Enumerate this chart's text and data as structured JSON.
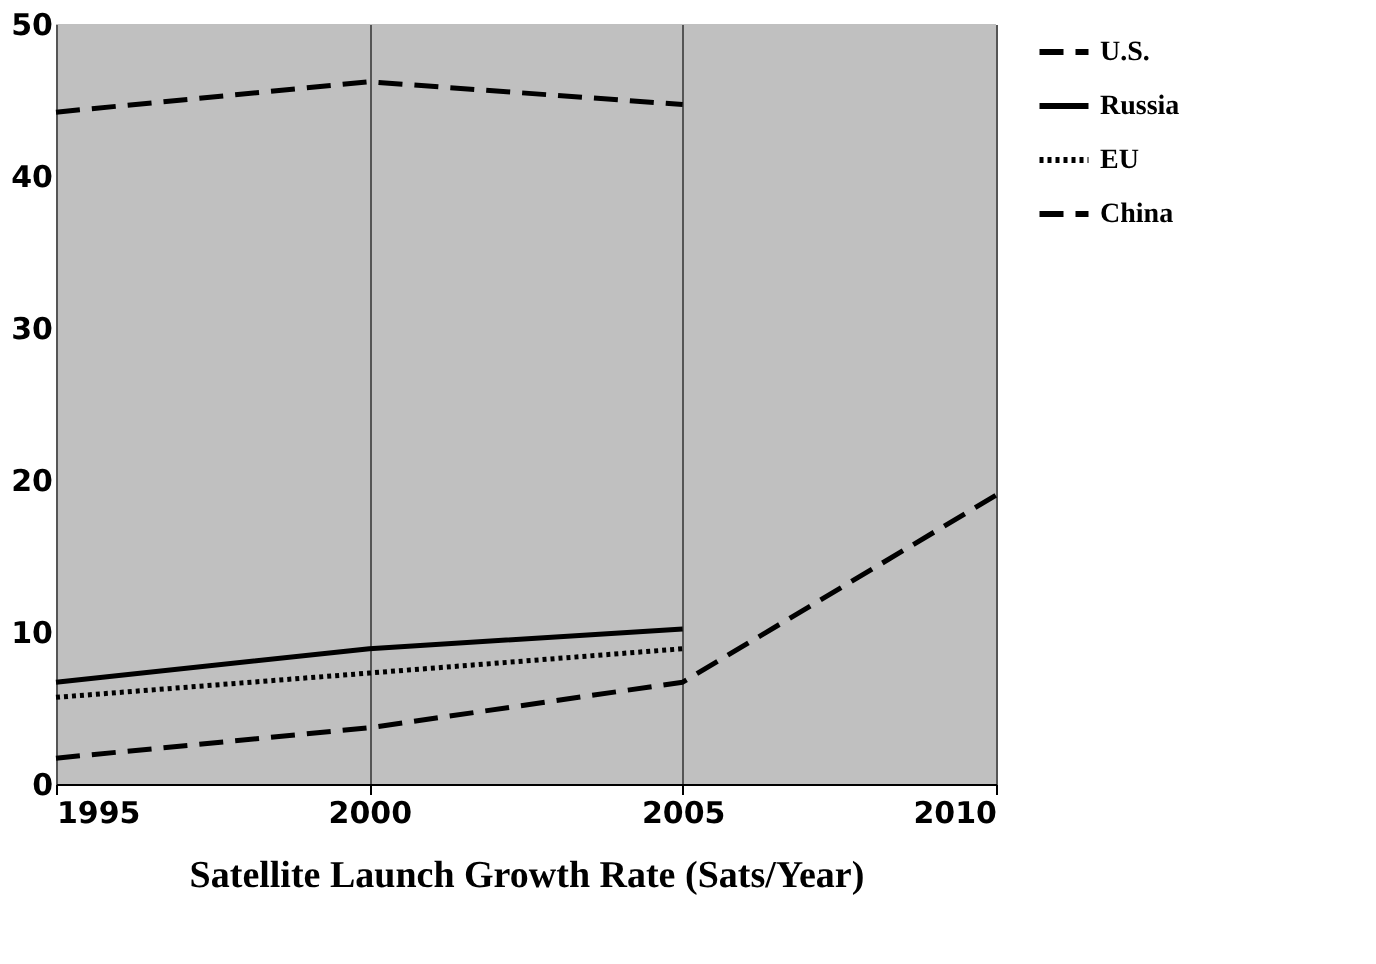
{
  "chart_data": {
    "type": "line",
    "xlabel": "Satellite Launch Growth Rate (Sats/Year)",
    "x": [
      1995,
      2000,
      2005,
      2010
    ],
    "series": [
      {
        "name": "U.S.",
        "color": "#000000",
        "line_style": "dashed",
        "values": [
          44.2,
          46.2,
          44.7,
          null
        ]
      },
      {
        "name": "Russia",
        "color": "#000000",
        "line_style": "solid",
        "values": [
          6.7,
          8.9,
          10.2,
          null
        ]
      },
      {
        "name": "EU",
        "color": "#000000",
        "line_style": "dotted",
        "values": [
          5.7,
          7.3,
          8.9,
          null
        ]
      },
      {
        "name": "China",
        "color": "#000000",
        "line_style": "dashed",
        "values": [
          1.7,
          3.7,
          6.7,
          19
        ]
      }
    ],
    "xlim": [
      1995,
      2010
    ],
    "xticks": [
      1995,
      2000,
      2005,
      2010
    ],
    "ylim": [
      0,
      50
    ],
    "yticks": [
      0,
      10,
      20,
      30,
      40,
      50
    ],
    "grid": "x",
    "legend": "right",
    "marker": "none"
  }
}
